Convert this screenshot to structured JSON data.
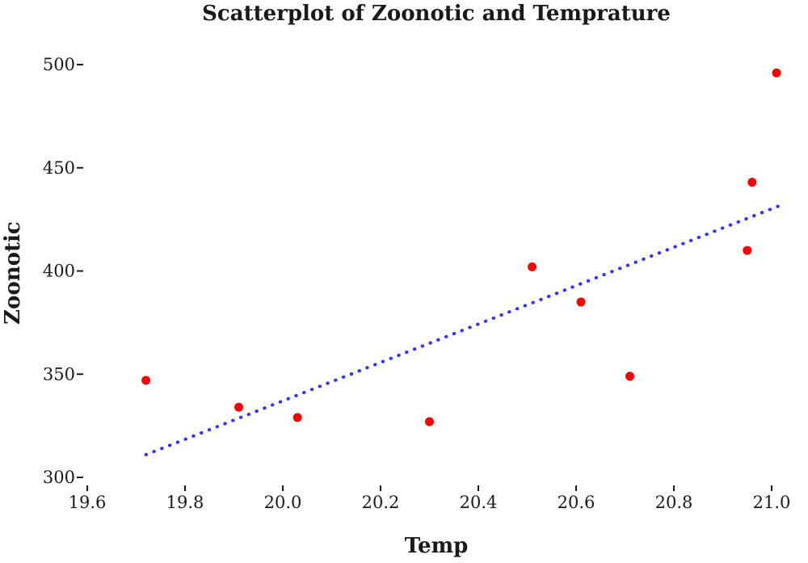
{
  "chart_data": {
    "type": "scatter",
    "title": "Scatterplot of Zoonotic and Temprature",
    "xlabel": "Temp",
    "ylabel": "Zoonotic",
    "xlim": [
      19.6,
      21.0
    ],
    "ylim": [
      300,
      500
    ],
    "x_ticks": [
      "19.6",
      "19.8",
      "20.0",
      "20.2",
      "20.4",
      "20.6",
      "20.8",
      "21.0"
    ],
    "y_ticks": [
      "300",
      "350",
      "400",
      "450",
      "500"
    ],
    "grid": false,
    "legend": "none",
    "series": [
      {
        "marker_color": "#ff0000",
        "points": [
          {
            "x": 19.72,
            "y": 347
          },
          {
            "x": 19.91,
            "y": 334
          },
          {
            "x": 20.03,
            "y": 329
          },
          {
            "x": 20.3,
            "y": 327
          },
          {
            "x": 20.51,
            "y": 402
          },
          {
            "x": 20.61,
            "y": 385
          },
          {
            "x": 20.71,
            "y": 349
          },
          {
            "x": 20.95,
            "y": 410
          },
          {
            "x": 20.96,
            "y": 443
          },
          {
            "x": 21.01,
            "y": 496
          }
        ]
      }
    ],
    "trendline": {
      "color": "#3333ff",
      "style": "dotted",
      "x": [
        19.72,
        21.02
      ],
      "y": [
        311,
        432
      ]
    }
  }
}
